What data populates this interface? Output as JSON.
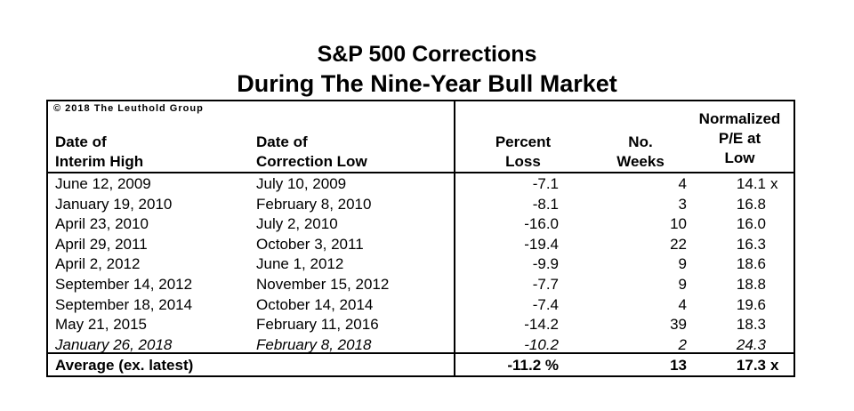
{
  "title": {
    "line1": "S&P 500 Corrections",
    "line2": "During The Nine-Year Bull Market"
  },
  "copyright": "© 2018 The Leuthold Group",
  "headers": {
    "high": [
      "Date of",
      "Interim High"
    ],
    "low": [
      "Date of",
      "Correction Low"
    ],
    "loss": [
      "Percent",
      "Loss"
    ],
    "weeks": [
      "No.",
      "Weeks"
    ],
    "pe": [
      "Normalized",
      "P/E at",
      "Low"
    ]
  },
  "rows": [
    {
      "high": "June 12, 2009",
      "low": "July 10, 2009",
      "loss": "-7.1",
      "weeks": "4",
      "pe": "14.1",
      "suffix": "x"
    },
    {
      "high": "January 19, 2010",
      "low": "February 8, 2010",
      "loss": "-8.1",
      "weeks": "3",
      "pe": "16.8",
      "suffix": ""
    },
    {
      "high": "April 23, 2010",
      "low": "July 2, 2010",
      "loss": "-16.0",
      "weeks": "10",
      "pe": "16.0",
      "suffix": ""
    },
    {
      "high": "April 29, 2011",
      "low": "October 3, 2011",
      "loss": "-19.4",
      "weeks": "22",
      "pe": "16.3",
      "suffix": ""
    },
    {
      "high": "April 2, 2012",
      "low": "June 1, 2012",
      "loss": "-9.9",
      "weeks": "9",
      "pe": "18.6",
      "suffix": ""
    },
    {
      "high": "September 14, 2012",
      "low": "November 15, 2012",
      "loss": "-7.7",
      "weeks": "9",
      "pe": "18.8",
      "suffix": ""
    },
    {
      "high": "September 18, 2014",
      "low": "October 14, 2014",
      "loss": "-7.4",
      "weeks": "4",
      "pe": "19.6",
      "suffix": ""
    },
    {
      "high": "May 21, 2015",
      "low": "February 11, 2016",
      "loss": "-14.2",
      "weeks": "39",
      "pe": "18.3",
      "suffix": ""
    },
    {
      "high": "January 26, 2018",
      "low": "February 8, 2018",
      "loss": "-10.2",
      "weeks": "2",
      "pe": "24.3",
      "suffix": "",
      "italic": true
    }
  ],
  "average": {
    "label": "Average (ex. latest)",
    "loss": "-11.2 %",
    "weeks": "13",
    "pe": "17.3",
    "suffix": "x"
  }
}
